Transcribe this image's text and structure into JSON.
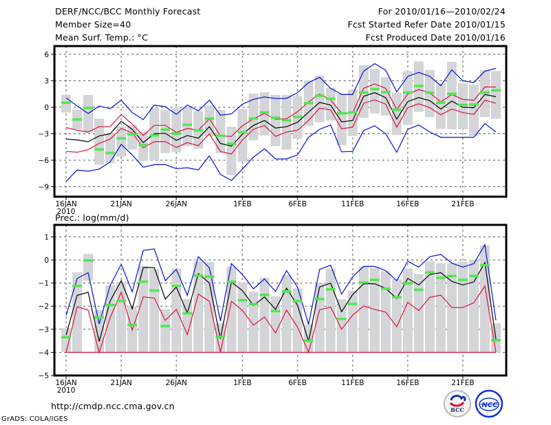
{
  "header": {
    "title": "DERF/NCC/BCC Monthly Forecast",
    "member_size": "Member Size=40",
    "variable_temp": "Mean Surf. Temp.: °C",
    "period": "For 2010/01/16—2010/02/24",
    "started": "Fcst Started Refer Date 2010/01/15",
    "produced": "Fcst Produced Date 2010/01/16"
  },
  "footer": {
    "url": "http://cmdp.ncc.cma.gov.cn",
    "grads": "GrADS: COLA/IGES",
    "logo_bcc": "BCC",
    "logo_ncc": "NCC"
  },
  "colors": {
    "ensemble_mean": "#000000",
    "spread_1sd": "#e0103a",
    "extremes": "#0010d8",
    "observed": "#50e850",
    "member_range": "#d4d5d8"
  },
  "chart_data": [
    {
      "type": "line",
      "title": "Mean Surf. Temp.: °C",
      "xlabel": "",
      "ylabel": "",
      "ylim": [
        -10.5,
        7
      ],
      "yticks": [
        6,
        3,
        0,
        -3,
        -6,
        -9
      ],
      "grid": true,
      "xtick_labels": [
        {
          "day": 0,
          "label": "16JAN",
          "sub": "2010"
        },
        {
          "day": 5,
          "label": "21JAN"
        },
        {
          "day": 10,
          "label": "26JAN"
        },
        {
          "day": 16,
          "label": "1FEB"
        },
        {
          "day": 21,
          "label": "6FEB"
        },
        {
          "day": 26,
          "label": "11FEB"
        },
        {
          "day": 31,
          "label": "16FEB"
        },
        {
          "day": 36,
          "label": "21FEB"
        }
      ],
      "x_days": 40,
      "series": [
        {
          "name": "max",
          "color": "#0010d8",
          "values": [
            1.07,
            0.15,
            -0.7,
            0.13,
            -0.15,
            0.8,
            -0.6,
            -1.4,
            0.25,
            0.08,
            -0.8,
            0.25,
            -0.4,
            0.8,
            -0.9,
            -0.75,
            0.35,
            0.9,
            1.17,
            1.0,
            1.0,
            1.65,
            2.8,
            3.4,
            2.15,
            1.45,
            1.45,
            4.1,
            4.95,
            4.2,
            1.75,
            3.5,
            3.95,
            3.5,
            2.45,
            4.25,
            3.0,
            2.8,
            4.1,
            4.4
          ]
        },
        {
          "name": "mean+sd",
          "color": "#e0103a",
          "values": [
            -2.3,
            -2.6,
            -2.8,
            -2.2,
            -2.2,
            -0.83,
            -1.9,
            -3.2,
            -2.05,
            -2.05,
            -2.85,
            -2.4,
            -2.6,
            -1.3,
            -3.25,
            -3.3,
            -2.1,
            -1.3,
            -0.7,
            -1.35,
            -1.3,
            -0.5,
            0.6,
            1.5,
            0.85,
            -0.7,
            -0.65,
            2.15,
            2.65,
            2.15,
            -0.25,
            1.5,
            2.0,
            1.65,
            0.6,
            1.45,
            0.9,
            0.8,
            2.3,
            2.3
          ]
        },
        {
          "name": "ensemble mean",
          "color": "#000000",
          "values": [
            -3.6,
            -3.7,
            -3.9,
            -3.25,
            -3.0,
            -1.6,
            -2.5,
            -4.0,
            -3.0,
            -2.95,
            -3.75,
            -3.2,
            -3.5,
            -2.2,
            -4.1,
            -4.4,
            -3.05,
            -2.05,
            -1.5,
            -2.35,
            -2.2,
            -1.7,
            -0.55,
            0.55,
            0.25,
            -1.65,
            -1.5,
            1.25,
            1.65,
            1.1,
            -1.35,
            0.65,
            1.1,
            0.75,
            -0.2,
            0.7,
            0.0,
            -0.05,
            1.45,
            1.2
          ]
        },
        {
          "name": "mean-sd",
          "color": "#e0103a",
          "values": [
            -5.0,
            -5.1,
            -4.8,
            -4.1,
            -3.6,
            -2.4,
            -2.9,
            -4.6,
            -3.9,
            -3.9,
            -4.55,
            -4.0,
            -4.35,
            -3.0,
            -5.0,
            -5.3,
            -3.7,
            -2.5,
            -2.05,
            -3.3,
            -2.8,
            -2.6,
            -1.5,
            -0.1,
            -0.3,
            -2.45,
            -2.25,
            0.45,
            0.85,
            0.35,
            -2.25,
            -0.05,
            0.4,
            -0.05,
            -0.85,
            -0.2,
            -0.6,
            -0.8,
            0.8,
            0.45
          ]
        },
        {
          "name": "min",
          "color": "#0010d8",
          "values": [
            -8.4,
            -7.1,
            -7.25,
            -7.0,
            -6.2,
            -4.2,
            -5.4,
            -6.8,
            -6.5,
            -6.5,
            -6.95,
            -6.85,
            -7.1,
            -5.5,
            -7.6,
            -8.3,
            -7.0,
            -5.65,
            -4.7,
            -5.85,
            -5.85,
            -5.4,
            -3.4,
            -2.5,
            -2.0,
            -5.05,
            -5.0,
            -2.65,
            -2.1,
            -3.0,
            -5.1,
            -2.5,
            -2.0,
            -2.8,
            -3.4,
            -3.4,
            -3.4,
            -3.4,
            -1.85,
            -2.8
          ]
        }
      ],
      "member_range": {
        "high": [
          1.4,
          -0.3,
          1.4,
          -1.3,
          -3.0,
          -2.15,
          -2.0,
          -2.8,
          -0.1,
          -0.3,
          -0.1,
          0.0,
          -0.45,
          0.2,
          -0.3,
          -2.2,
          -0.2,
          1.55,
          1.7,
          1.4,
          1.4,
          1.25,
          3.05,
          3.6,
          2.2,
          1.5,
          2.0,
          4.75,
          4.35,
          3.4,
          1.65,
          4.1,
          5.2,
          4.2,
          2.7,
          5.15,
          2.75,
          2.55,
          4.2,
          4.1
        ],
        "low": [
          -0.6,
          -2.5,
          -2.9,
          -6.5,
          -6.3,
          -5.6,
          -4.8,
          -6.1,
          -6.0,
          -5.2,
          -5.1,
          -4.4,
          -4.7,
          -3.3,
          -5.2,
          -7.7,
          -6.2,
          -3.75,
          -3.2,
          -4.4,
          -4.8,
          -3.55,
          -2.1,
          -1.7,
          -1.5,
          -4.3,
          -3.25,
          -1.2,
          -0.7,
          -0.95,
          -3.15,
          -2.0,
          -0.5,
          -1.1,
          -2.45,
          -2.5,
          -2.5,
          -3.25,
          -1.1,
          -1.3
        ]
      },
      "observed": [
        0.5,
        -1.4,
        -0.1,
        -4.8,
        -5.2,
        -3.55,
        -3.1,
        -4.3,
        -3.2,
        -2.55,
        -3.0,
        -2.0,
        -2.65,
        -1.3,
        -3.25,
        -4.15,
        -2.85,
        -1.3,
        -0.6,
        -1.2,
        -1.5,
        -1.1,
        0.45,
        1.3,
        0.95,
        -0.7,
        -0.6,
        1.65,
        2.05,
        1.7,
        -0.3,
        1.65,
        2.4,
        1.65,
        0.5,
        1.5,
        0.25,
        0.3,
        1.65,
        1.9
      ]
    },
    {
      "type": "line",
      "title": "Prec.: log(mm/d)",
      "xlabel": "",
      "ylabel": "",
      "ylim": [
        -5,
        1.5
      ],
      "yticks": [
        1,
        0,
        -1,
        -2,
        -3,
        -4,
        -5
      ],
      "grid": true,
      "xtick_labels": [
        {
          "day": 0,
          "label": "16JAN",
          "sub": "2010"
        },
        {
          "day": 5,
          "label": "21JAN"
        },
        {
          "day": 10,
          "label": "26JAN"
        },
        {
          "day": 16,
          "label": "1FEB"
        },
        {
          "day": 21,
          "label": "6FEB"
        },
        {
          "day": 26,
          "label": "11FEB"
        },
        {
          "day": 31,
          "label": "16FEB"
        },
        {
          "day": 36,
          "label": "21FEB"
        }
      ],
      "x_days": 40,
      "series": [
        {
          "name": "max",
          "color": "#0010d8",
          "values": [
            -2.4,
            -0.8,
            -0.55,
            -2.77,
            -1.1,
            -0.19,
            -1.38,
            0.41,
            0.48,
            -0.9,
            -0.41,
            -1.53,
            0.14,
            -0.34,
            -2.64,
            -0.16,
            -0.63,
            -1.25,
            -0.82,
            -1.37,
            -0.46,
            -1.18,
            -2.79,
            -0.41,
            -0.23,
            -1.48,
            -0.73,
            -0.28,
            -0.28,
            -0.46,
            -0.9,
            -0.06,
            -0.31,
            0.14,
            0.24,
            -0.14,
            -0.31,
            -0.16,
            0.66,
            -2.61
          ]
        },
        {
          "name": "ensemble mean",
          "color": "#000000",
          "values": [
            -3.25,
            -1.53,
            -1.4,
            -3.53,
            -1.77,
            -0.9,
            -2.12,
            -0.33,
            -0.33,
            -1.7,
            -1.17,
            -2.31,
            -0.59,
            -1.0,
            -3.41,
            -0.95,
            -1.33,
            -1.97,
            -1.6,
            -2.14,
            -1.22,
            -1.96,
            -3.53,
            -1.17,
            -1.0,
            -2.24,
            -1.5,
            -1.03,
            -1.03,
            -1.23,
            -1.67,
            -0.8,
            -1.08,
            -0.63,
            -0.55,
            -0.93,
            -1.08,
            -0.95,
            -0.11,
            -3.43
          ]
        },
        {
          "name": "mean-sd",
          "color": "#e0103a",
          "values": [
            -4.0,
            -2.02,
            -2.17,
            -4.0,
            -2.49,
            -1.4,
            -3.04,
            -1.6,
            -1.65,
            -2.62,
            -2.14,
            -3.23,
            -1.48,
            -1.79,
            -4.0,
            -1.79,
            -2.19,
            -2.82,
            -2.46,
            -3.16,
            -2.17,
            -2.91,
            -4.0,
            -2.16,
            -2.04,
            -3.0,
            -2.39,
            -1.99,
            -2.14,
            -2.26,
            -2.89,
            -1.83,
            -2.19,
            -1.62,
            -1.52,
            -2.06,
            -2.06,
            -1.85,
            -1.13,
            -4.0
          ]
        },
        {
          "name": "min",
          "color": "#e0103a",
          "values": [
            -4,
            -4,
            -4,
            -4,
            -4,
            -4,
            -4,
            -4,
            -4,
            -4,
            -4,
            -4,
            -4,
            -4,
            -4,
            -4,
            -4,
            -4,
            -4,
            -4,
            -4,
            -4,
            -4,
            -4,
            -4,
            -4,
            -4,
            -4,
            -4,
            -4,
            -4,
            -4,
            -4,
            -4,
            -4,
            -4,
            -4,
            -4,
            -4,
            -4
          ]
        }
      ],
      "member_range": {
        "high": [
          -2.95,
          -0.53,
          0.26,
          -2.16,
          -1.1,
          -0.95,
          -2.0,
          -0.26,
          -0.39,
          -2.14,
          -0.38,
          -1.7,
          -0.06,
          -0.09,
          -2.74,
          -0.29,
          -0.97,
          -1.37,
          -0.77,
          -1.57,
          -0.65,
          -1.23,
          -2.79,
          -1.0,
          -0.38,
          -1.7,
          -1.33,
          -0.28,
          -0.34,
          -0.49,
          -0.83,
          -0.36,
          -0.61,
          -0.06,
          -0.14,
          -0.14,
          -0.08,
          0.02,
          0.63,
          -2.74
        ],
        "low": [
          -3.98,
          -4.0,
          -0.9,
          -4.0,
          -4.0,
          -4.0,
          -4.0,
          -4.0,
          -4.0,
          -4.0,
          -4.0,
          -4.0,
          -4.0,
          -4.0,
          -4.0,
          -4.0,
          -4.0,
          -4.0,
          -4.0,
          -4.0,
          -4.0,
          -4.0,
          -4.0,
          -4.0,
          -4.0,
          -4.0,
          -4.0,
          -4.0,
          -4.0,
          -4.0,
          -4.0,
          -4.0,
          -4.0,
          -4.0,
          -4.0,
          -4.0,
          -4.0,
          -4.0,
          -4.0,
          -4.0
        ]
      },
      "observed": [
        -3.35,
        -1.13,
        -0.03,
        -2.49,
        -1.96,
        -1.78,
        -2.82,
        -0.95,
        -1.33,
        -2.87,
        -1.13,
        -2.32,
        -0.68,
        -0.73,
        -3.33,
        -0.95,
        -1.75,
        -1.92,
        -1.52,
        -2.22,
        -1.37,
        -1.79,
        -3.51,
        -1.7,
        -1.28,
        -2.56,
        -1.91,
        -0.98,
        -0.87,
        -1.25,
        -1.62,
        -1.02,
        -1.3,
        -0.55,
        -0.78,
        -0.7,
        -0.87,
        -0.7,
        -0.23,
        -3.48
      ]
    }
  ]
}
